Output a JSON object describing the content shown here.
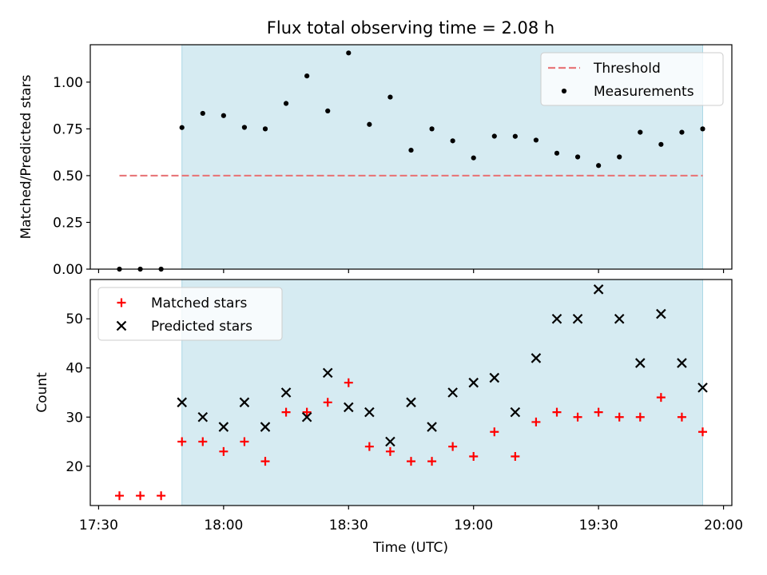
{
  "chart_data": {
    "title": "Flux total observing time = 2.08 h",
    "xlabel": "Time (UTC)",
    "x_ticks": [
      "17:30",
      "18:00",
      "18:30",
      "19:00",
      "19:30",
      "20:00"
    ],
    "x_range": [
      "17:28",
      "20:02"
    ],
    "shaded_interval": [
      "17:50",
      "19:55"
    ],
    "colors": {
      "shade": "#add8e6",
      "threshold": "#e8777a",
      "matched": "#ff0000",
      "predicted": "#000000",
      "measurement": "#000000"
    },
    "panels": [
      {
        "type": "scatter",
        "ylabel": "Matched/Predicted stars",
        "ylim": [
          0,
          1.2
        ],
        "yticks": [
          "0.00",
          "0.25",
          "0.50",
          "0.75",
          "1.00"
        ],
        "legend_position": "upper-right",
        "threshold": {
          "name": "Threshold",
          "value": 0.5,
          "x_start": "17:35",
          "x_end": "19:55"
        },
        "series": [
          {
            "name": "Measurements",
            "marker": "dot",
            "x": [
              "17:35",
              "17:40",
              "17:45",
              "17:50",
              "17:55",
              "18:00",
              "18:05",
              "18:10",
              "18:15",
              "18:20",
              "18:25",
              "18:30",
              "18:35",
              "18:40",
              "18:45",
              "18:50",
              "18:55",
              "19:00",
              "19:05",
              "19:10",
              "19:15",
              "19:20",
              "19:25",
              "19:30",
              "19:35",
              "19:40",
              "19:45",
              "19:50",
              "19:55"
            ],
            "y": [
              0.0,
              0.0,
              0.0,
              0.757,
              0.833,
              0.821,
              0.758,
              0.75,
              0.886,
              1.033,
              0.846,
              1.156,
              0.774,
              0.92,
              0.636,
              0.75,
              0.686,
              0.595,
              0.711,
              0.71,
              0.69,
              0.62,
              0.6,
              0.554,
              0.6,
              0.732,
              0.667,
              0.732,
              0.75
            ]
          }
        ]
      },
      {
        "type": "scatter",
        "ylabel": "Count",
        "ylim": [
          12,
          58
        ],
        "yticks": [
          "20",
          "30",
          "40",
          "50"
        ],
        "legend_position": "upper-left",
        "series": [
          {
            "name": "Matched stars",
            "marker": "plus",
            "x": [
              "17:35",
              "17:40",
              "17:45",
              "17:50",
              "17:55",
              "18:00",
              "18:05",
              "18:10",
              "18:15",
              "18:20",
              "18:25",
              "18:30",
              "18:35",
              "18:40",
              "18:45",
              "18:50",
              "18:55",
              "19:00",
              "19:05",
              "19:10",
              "19:15",
              "19:20",
              "19:25",
              "19:30",
              "19:35",
              "19:40",
              "19:45",
              "19:50",
              "19:55"
            ],
            "y": [
              14,
              14,
              14,
              25,
              25,
              23,
              25,
              21,
              31,
              31,
              33,
              37,
              24,
              23,
              21,
              21,
              24,
              22,
              27,
              22,
              29,
              31,
              30,
              31,
              30,
              30,
              34,
              30,
              27
            ]
          },
          {
            "name": "Predicted stars",
            "marker": "x",
            "x": [
              "17:50",
              "17:55",
              "18:00",
              "18:05",
              "18:10",
              "18:15",
              "18:20",
              "18:25",
              "18:30",
              "18:35",
              "18:40",
              "18:45",
              "18:50",
              "18:55",
              "19:00",
              "19:05",
              "19:10",
              "19:15",
              "19:20",
              "19:25",
              "19:30",
              "19:35",
              "19:40",
              "19:45",
              "19:50",
              "19:55"
            ],
            "y": [
              33,
              30,
              28,
              33,
              28,
              35,
              30,
              39,
              32,
              31,
              25,
              33,
              28,
              35,
              37,
              38,
              31,
              42,
              50,
              50,
              56,
              50,
              41,
              51,
              41,
              36
            ]
          }
        ]
      }
    ]
  }
}
